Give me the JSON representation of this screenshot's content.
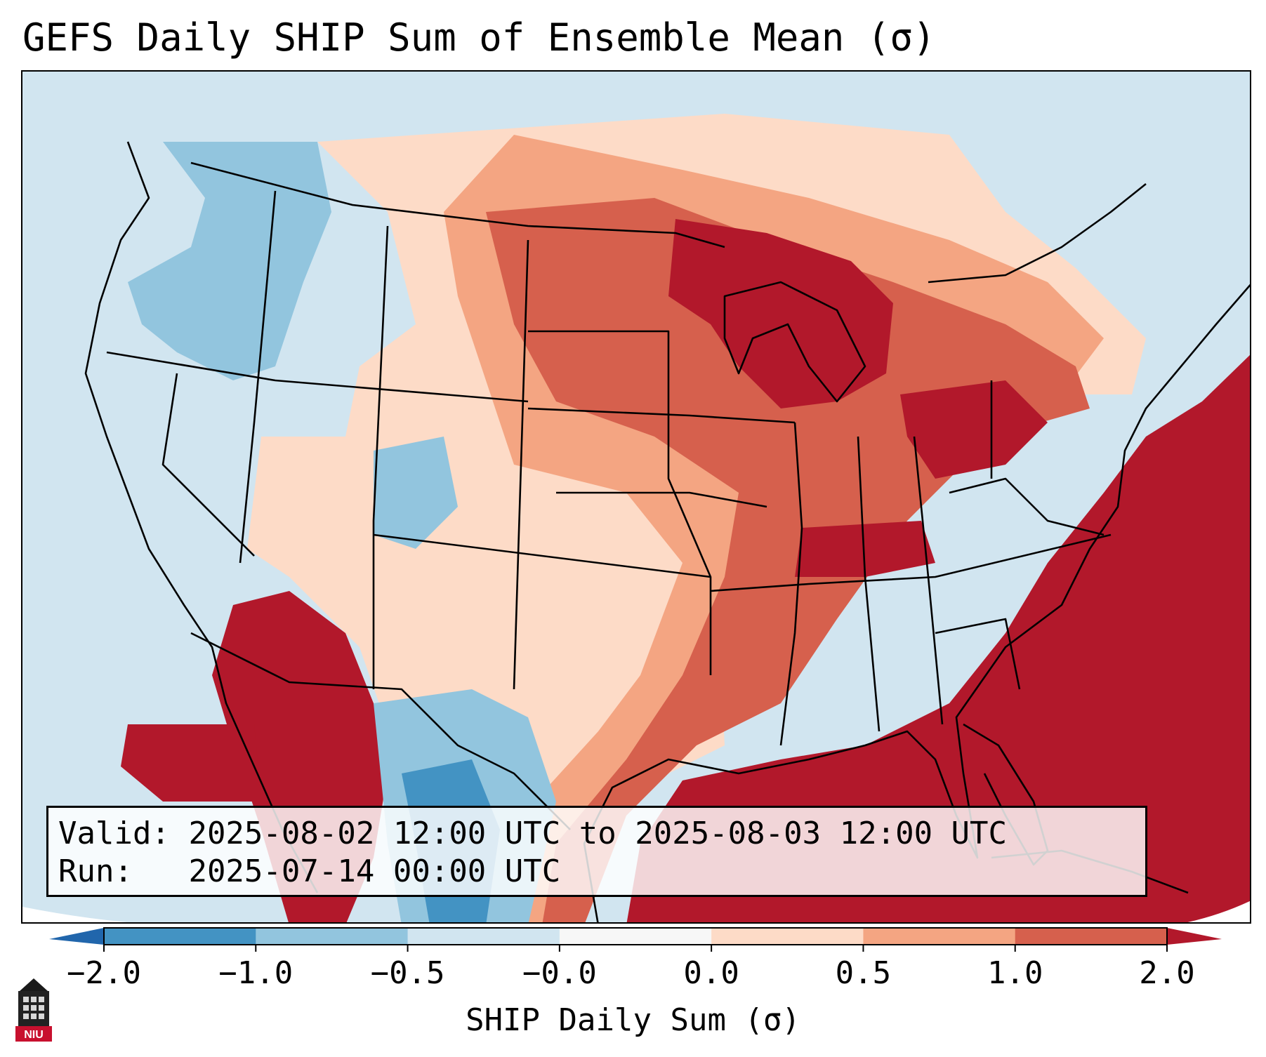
{
  "title": "GEFS Daily SHIP Sum of Ensemble Mean (σ)",
  "info": {
    "valid_label": "Valid:",
    "valid_value": "2025-08-02 12:00 UTC to 2025-08-03 12:00 UTC",
    "run_label": "Run:",
    "run_value": "2025-07-14 00:00 UTC"
  },
  "colorbar": {
    "axis_label": "SHIP Daily Sum (σ)",
    "tick_labels": [
      "−2.0",
      "−1.0",
      "−0.5",
      "−0.0",
      "0.0",
      "0.5",
      "1.0",
      "2.0"
    ],
    "bins": [
      {
        "color": "#4393c3"
      },
      {
        "color": "#92c5de"
      },
      {
        "color": "#d1e5f0"
      },
      {
        "color": "#f7f7f7"
      },
      {
        "color": "#fddbc7"
      },
      {
        "color": "#f4a582"
      },
      {
        "color": "#d6604d"
      }
    ],
    "extend_low_color": "#2166ac",
    "extend_high_color": "#b2182b"
  },
  "map": {
    "projection": "conic",
    "region": "Contiguous United States",
    "colors": {
      "strong_negative": "#4393c3",
      "negative": "#92c5de",
      "weak_negative": "#d1e5f0",
      "neutral": "#f7f7f7",
      "weak_positive": "#fddbc7",
      "positive": "#f4a582",
      "moderate_positive": "#d6604d",
      "strong_positive": "#b2182b"
    }
  },
  "logo": {
    "icon": "university-tower-icon",
    "text": "NIU"
  }
}
